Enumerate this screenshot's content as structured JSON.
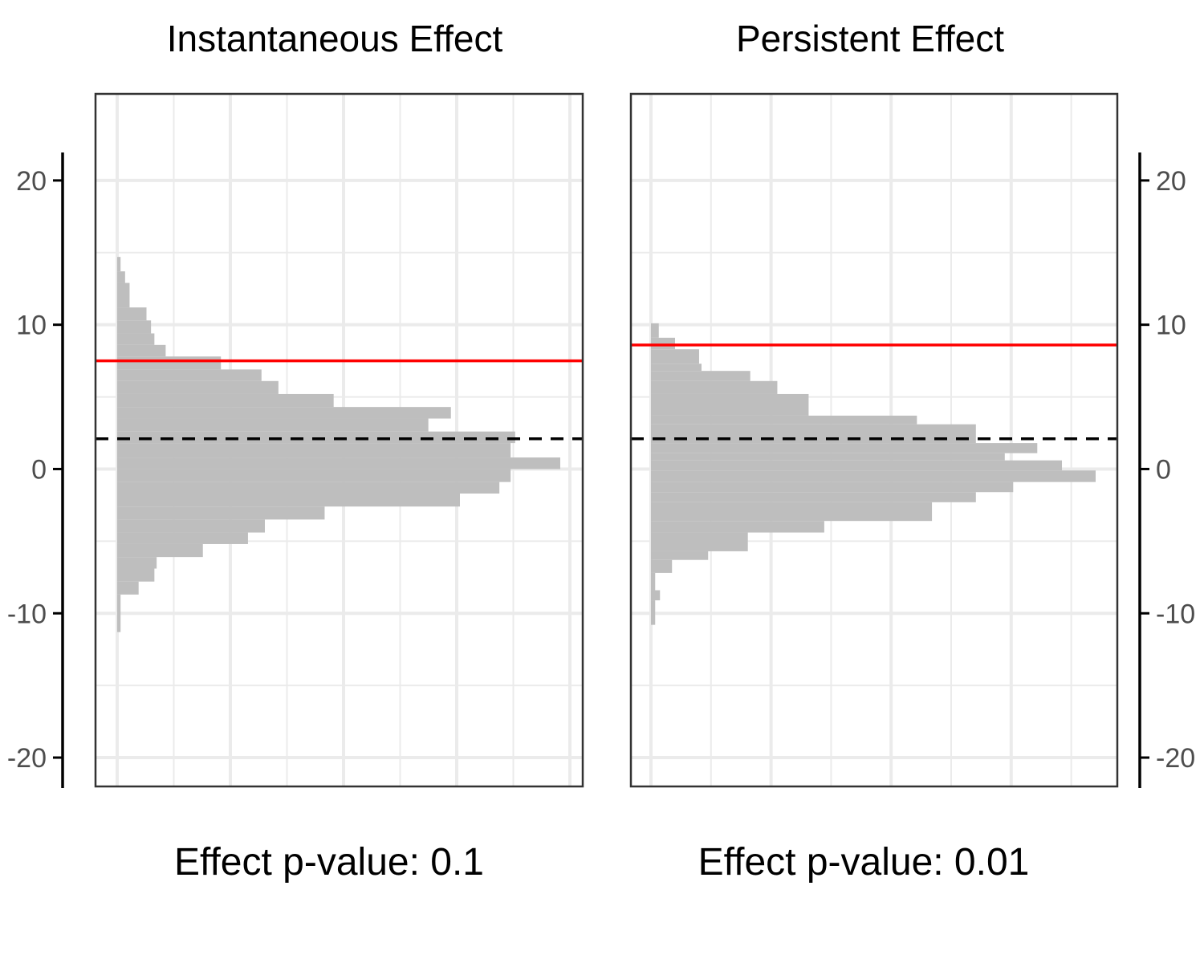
{
  "chart_data": [
    {
      "type": "histogram",
      "orientation": "horizontal",
      "title": "Instantaneous Effect",
      "caption": "Effect p-value:  0.1",
      "ylim": [
        -22,
        26
      ],
      "yticks": [
        -20,
        -10,
        0,
        10,
        20
      ],
      "x_grid_count": 9,
      "grid": true,
      "colors": {
        "bars": "#bebebe",
        "observed_line": "#ff0000",
        "reference_line": "#000000"
      },
      "observed_effect": 7.5,
      "reference_line": 2.1,
      "bins": [
        {
          "y0": -11.3,
          "y1": -8.7,
          "count": 0.03
        },
        {
          "y0": -8.7,
          "y1": -7.8,
          "count": 0.19
        },
        {
          "y0": -7.8,
          "y1": -6.9,
          "count": 0.33
        },
        {
          "y0": -6.9,
          "y1": -6.1,
          "count": 0.35
        },
        {
          "y0": -6.1,
          "y1": -5.2,
          "count": 0.76
        },
        {
          "y0": -5.2,
          "y1": -4.4,
          "count": 1.16
        },
        {
          "y0": -4.4,
          "y1": -3.5,
          "count": 1.31
        },
        {
          "y0": -3.5,
          "y1": -2.6,
          "count": 1.84
        },
        {
          "y0": -2.6,
          "y1": -1.7,
          "count": 3.04
        },
        {
          "y0": -1.7,
          "y1": -0.9,
          "count": 3.39
        },
        {
          "y0": -0.9,
          "y1": 0.0,
          "count": 3.49
        },
        {
          "y0": 0.0,
          "y1": 0.8,
          "count": 3.93
        },
        {
          "y0": 0.8,
          "y1": 1.8,
          "count": 3.49
        },
        {
          "y0": 1.8,
          "y1": 2.6,
          "count": 3.53
        },
        {
          "y0": 2.6,
          "y1": 3.5,
          "count": 2.76
        },
        {
          "y0": 3.5,
          "y1": 4.3,
          "count": 2.96
        },
        {
          "y0": 4.3,
          "y1": 5.2,
          "count": 1.92
        },
        {
          "y0": 5.2,
          "y1": 6.1,
          "count": 1.43
        },
        {
          "y0": 6.1,
          "y1": 6.9,
          "count": 1.28
        },
        {
          "y0": 6.9,
          "y1": 7.8,
          "count": 0.92
        },
        {
          "y0": 7.8,
          "y1": 8.6,
          "count": 0.43
        },
        {
          "y0": 8.6,
          "y1": 9.4,
          "count": 0.33
        },
        {
          "y0": 9.4,
          "y1": 10.3,
          "count": 0.3
        },
        {
          "y0": 10.3,
          "y1": 11.2,
          "count": 0.26
        },
        {
          "y0": 11.2,
          "y1": 12.9,
          "count": 0.11
        },
        {
          "y0": 12.9,
          "y1": 13.7,
          "count": 0.07
        },
        {
          "y0": 13.7,
          "y1": 14.7,
          "count": 0.03
        }
      ]
    },
    {
      "type": "histogram",
      "orientation": "horizontal",
      "title": "Persistent Effect",
      "caption": "Effect p-value:  0.01",
      "ylim": [
        -22,
        26
      ],
      "yticks": [
        -20,
        -10,
        0,
        10,
        20
      ],
      "x_grid_count": 8,
      "grid": true,
      "colors": {
        "bars": "#bebebe",
        "observed_line": "#ff0000",
        "reference_line": "#000000"
      },
      "observed_effect": 8.6,
      "reference_line": 2.1,
      "bins": [
        {
          "y0": -10.8,
          "y1": -9.1,
          "count": 0.07
        },
        {
          "y0": -9.1,
          "y1": -8.4,
          "count": 0.15
        },
        {
          "y0": -8.4,
          "y1": -7.2,
          "count": 0.07
        },
        {
          "y0": -7.2,
          "y1": -6.3,
          "count": 0.35
        },
        {
          "y0": -6.3,
          "y1": -5.7,
          "count": 0.95
        },
        {
          "y0": -5.7,
          "y1": -4.4,
          "count": 1.61
        },
        {
          "y0": -4.4,
          "y1": -3.6,
          "count": 2.88
        },
        {
          "y0": -3.6,
          "y1": -2.3,
          "count": 4.67
        },
        {
          "y0": -2.3,
          "y1": -1.6,
          "count": 5.4
        },
        {
          "y0": -1.6,
          "y1": -0.9,
          "count": 6.02
        },
        {
          "y0": -0.9,
          "y1": -0.1,
          "count": 7.39
        },
        {
          "y0": -0.1,
          "y1": 0.6,
          "count": 6.83
        },
        {
          "y0": 0.6,
          "y1": 1.1,
          "count": 5.88
        },
        {
          "y0": 1.1,
          "y1": 1.8,
          "count": 6.42
        },
        {
          "y0": 1.8,
          "y1": 3.1,
          "count": 5.4
        },
        {
          "y0": 3.1,
          "y1": 3.7,
          "count": 4.42
        },
        {
          "y0": 3.7,
          "y1": 5.2,
          "count": 2.62
        },
        {
          "y0": 5.2,
          "y1": 6.1,
          "count": 2.1
        },
        {
          "y0": 6.1,
          "y1": 6.8,
          "count": 1.65
        },
        {
          "y0": 6.8,
          "y1": 7.3,
          "count": 0.84
        },
        {
          "y0": 7.3,
          "y1": 8.3,
          "count": 0.8
        },
        {
          "y0": 8.3,
          "y1": 9.1,
          "count": 0.4
        },
        {
          "y0": 9.1,
          "y1": 10.1,
          "count": 0.13
        }
      ]
    }
  ]
}
